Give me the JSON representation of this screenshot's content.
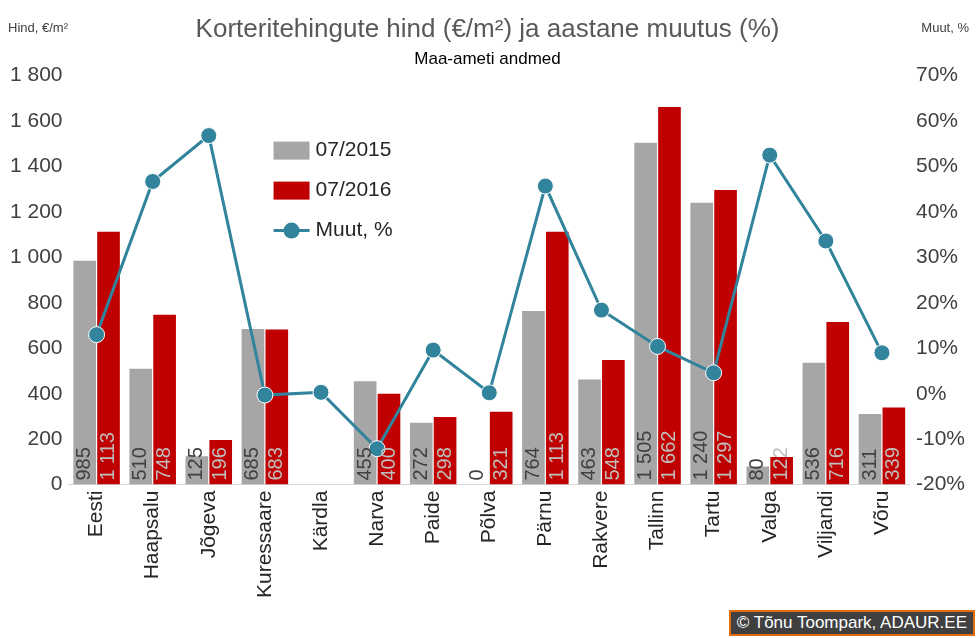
{
  "chart_data": {
    "type": "bar",
    "title": "Korteritehingute hind (€/m²) ja aastane muutus (%)",
    "subtitle": "Maa-ameti andmed",
    "y_label": "Hind, €/m²",
    "y2_label": "Muut, %",
    "annotations": [
      "© Tõnu Toompark, ADAUR.EE"
    ],
    "categories": [
      "Eesti",
      "Haapsalu",
      "Jõgeva",
      "Kuressaare",
      "Kärdla",
      "Narva",
      "Paide",
      "Põlva",
      "Pärnu",
      "Rakvere",
      "Tallinn",
      "Tartu",
      "Valga",
      "Viljandi",
      "Võru"
    ],
    "series": [
      {
        "name": "07/2015",
        "type": "bar",
        "color": "#a6a6a6",
        "data_labels": true,
        "values": [
          985,
          510,
          125,
          685,
          null,
          455,
          272,
          0,
          764,
          463,
          1505,
          1240,
          80,
          536,
          311
        ],
        "value_labels": [
          "985",
          "510",
          "125",
          "685",
          null,
          "455",
          "272",
          "0",
          "764",
          "463",
          "1 505",
          "1 240",
          "80",
          "536",
          "311"
        ]
      },
      {
        "name": "07/2016",
        "type": "bar",
        "color": "#c00000",
        "data_labels": true,
        "values": [
          1113,
          748,
          196,
          683,
          null,
          400,
          298,
          321,
          1113,
          548,
          1662,
          1297,
          122,
          716,
          339
        ],
        "value_labels": [
          "1 113",
          "748",
          "196",
          "683",
          null,
          "400",
          "298",
          "321",
          "1 113",
          "548",
          "1 662",
          "1 297",
          "122",
          "716",
          "339"
        ]
      },
      {
        "name": "Muut, %",
        "type": "line",
        "axis": "y2",
        "color": "#31849b",
        "marker": "circle",
        "line_style": "solid",
        "values": [
          13.0,
          46.7,
          56.8,
          -0.3,
          0.3,
          -12.1,
          9.6,
          0.2,
          45.7,
          18.4,
          10.4,
          4.6,
          52.5,
          33.6,
          9.0
        ]
      }
    ],
    "ylim": [
      0,
      1800
    ],
    "yticks": [
      0,
      200,
      400,
      600,
      800,
      {
        "value": 1000,
        "label": "1 000"
      },
      {
        "value": 1200,
        "label": "1 200"
      },
      {
        "value": 1400,
        "label": "1 400"
      },
      {
        "value": 1600,
        "label": "1 600"
      },
      {
        "value": 1800,
        "label": "1 800"
      }
    ],
    "y2lim": [
      -20,
      70
    ],
    "y2ticks": [
      {
        "value": -20,
        "label": "-20%"
      },
      {
        "value": -10,
        "label": "-10%"
      },
      {
        "value": 0,
        "label": "0%"
      },
      {
        "value": 10,
        "label": "10%"
      },
      {
        "value": 20,
        "label": "20%"
      },
      {
        "value": 30,
        "label": "30%"
      },
      {
        "value": 40,
        "label": "40%"
      },
      {
        "value": 50,
        "label": "50%"
      },
      {
        "value": 60,
        "label": "60%"
      },
      {
        "value": 70,
        "label": "70%"
      }
    ],
    "grid": false,
    "legend": "top-left"
  }
}
